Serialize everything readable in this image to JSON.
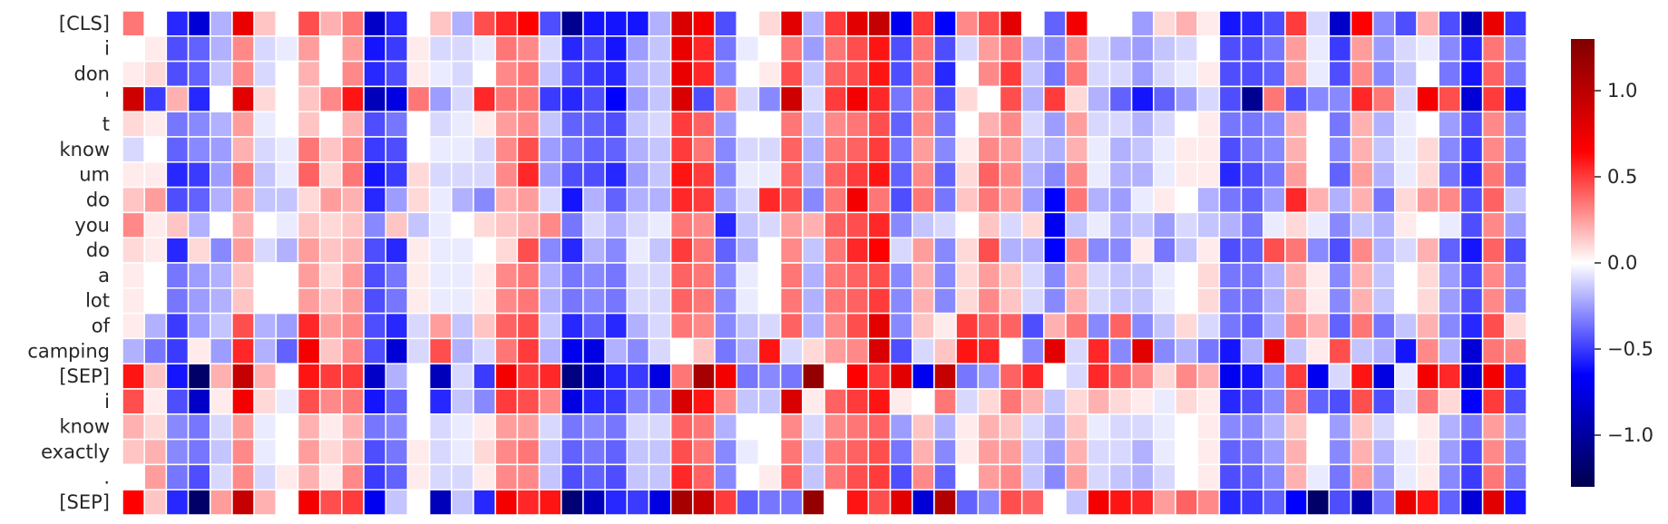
{
  "chart_data": {
    "type": "heatmap",
    "title": "",
    "xlabel": "",
    "ylabel": "",
    "rows": [
      "[CLS]",
      "i",
      "don",
      "'",
      "t",
      "know",
      "um",
      "do",
      "you",
      "do",
      "a",
      "lot",
      "of",
      "camping",
      "[SEP]",
      "i",
      "know",
      "exactly",
      ".",
      "[SEP]"
    ],
    "n_cols": 64,
    "colormap": "seismic",
    "vmin": -1.3,
    "vmax": 1.3,
    "colorbar_ticks": [
      1.0,
      0.5,
      0.0,
      -0.5,
      -1.0
    ],
    "colorbar_tick_labels": [
      "1.0",
      "0.5",
      "0.0",
      "−0.5",
      "−1.0"
    ],
    "values": [
      [
        0.35,
        0.0,
        -0.55,
        -0.8,
        -0.2,
        0.75,
        0.15,
        0.0,
        0.45,
        0.2,
        0.35,
        -0.85,
        -0.55,
        0.0,
        0.15,
        -0.2,
        0.45,
        0.55,
        0.65,
        -0.45,
        -1.05,
        -0.6,
        -0.6,
        -0.6,
        -0.2,
        0.85,
        0.7,
        -0.45,
        0.0,
        0.1,
        0.8,
        -0.2,
        0.5,
        0.8,
        0.95,
        -0.7,
        0.5,
        -0.65,
        0.3,
        0.45,
        0.8,
        0.0,
        -0.4,
        0.7,
        0.0,
        0.0,
        -0.25,
        0.1,
        0.2,
        0.05,
        -0.6,
        -0.55,
        -0.45,
        0.5,
        -0.1,
        -0.85,
        0.65,
        -0.3,
        -0.45,
        0.2,
        -0.45,
        -0.9,
        0.75,
        -0.5
      ],
      [
        0.0,
        0.05,
        -0.45,
        -0.4,
        -0.2,
        0.3,
        -0.1,
        -0.05,
        0.25,
        0.0,
        0.25,
        -0.6,
        -0.5,
        0.05,
        -0.1,
        -0.1,
        -0.05,
        0.35,
        0.3,
        -0.1,
        -0.55,
        -0.45,
        -0.6,
        -0.25,
        -0.15,
        0.75,
        0.55,
        -0.35,
        -0.05,
        0.0,
        0.35,
        -0.25,
        0.35,
        0.45,
        0.6,
        -0.45,
        0.35,
        -0.45,
        -0.1,
        0.25,
        0.35,
        -0.2,
        -0.3,
        0.3,
        -0.1,
        -0.2,
        -0.25,
        -0.15,
        -0.1,
        0.0,
        -0.45,
        -0.45,
        -0.35,
        0.25,
        -0.05,
        -0.5,
        0.25,
        -0.25,
        -0.1,
        -0.05,
        -0.3,
        -0.55,
        0.35,
        -0.3
      ],
      [
        0.05,
        0.1,
        -0.45,
        -0.4,
        -0.15,
        0.3,
        -0.1,
        0.0,
        0.2,
        0.0,
        0.3,
        -0.55,
        -0.45,
        0.05,
        -0.05,
        -0.1,
        0.0,
        0.3,
        0.35,
        -0.15,
        -0.45,
        -0.5,
        -0.55,
        -0.2,
        -0.15,
        0.75,
        0.55,
        -0.3,
        0.0,
        0.05,
        0.45,
        -0.15,
        0.4,
        0.45,
        0.6,
        -0.45,
        0.35,
        -0.55,
        0.0,
        0.3,
        0.5,
        -0.15,
        -0.35,
        0.35,
        -0.1,
        -0.1,
        -0.25,
        -0.1,
        -0.05,
        0.05,
        -0.45,
        -0.45,
        -0.4,
        0.25,
        -0.05,
        -0.45,
        0.3,
        -0.3,
        -0.15,
        0.0,
        -0.35,
        -0.6,
        0.4,
        -0.35
      ],
      [
        0.9,
        -0.5,
        0.2,
        -0.55,
        0.0,
        0.8,
        0.1,
        0.0,
        0.15,
        0.3,
        0.6,
        -0.9,
        -0.75,
        0.35,
        -0.25,
        -0.1,
        0.55,
        0.35,
        0.35,
        -0.5,
        -0.55,
        -0.45,
        -0.65,
        -0.25,
        -0.15,
        0.85,
        -0.45,
        0.35,
        -0.1,
        -0.3,
        0.9,
        -0.1,
        0.5,
        0.7,
        0.55,
        -0.35,
        0.3,
        -0.45,
        0.1,
        0.0,
        0.45,
        -0.2,
        0.5,
        0.1,
        -0.2,
        -0.4,
        -0.6,
        -0.4,
        -0.25,
        -0.1,
        -0.45,
        -1.05,
        0.35,
        -0.45,
        -0.3,
        -0.3,
        0.55,
        0.35,
        -0.1,
        0.7,
        0.45,
        -0.8,
        0.5,
        -0.6
      ],
      [
        0.1,
        0.05,
        -0.35,
        -0.3,
        -0.2,
        0.25,
        -0.05,
        0.0,
        0.15,
        0.0,
        0.2,
        -0.45,
        -0.35,
        0.0,
        -0.1,
        -0.05,
        0.05,
        0.25,
        0.3,
        -0.15,
        -0.4,
        -0.4,
        -0.45,
        -0.15,
        -0.1,
        0.5,
        0.4,
        -0.25,
        0.0,
        0.0,
        0.35,
        -0.15,
        0.3,
        0.35,
        0.45,
        -0.4,
        0.3,
        -0.35,
        0.0,
        0.2,
        0.3,
        -0.1,
        -0.25,
        0.25,
        -0.1,
        -0.1,
        -0.2,
        -0.1,
        0.0,
        0.05,
        -0.35,
        -0.35,
        -0.3,
        0.2,
        0.0,
        -0.35,
        0.2,
        -0.2,
        -0.05,
        0.0,
        -0.25,
        -0.45,
        0.3,
        -0.3
      ],
      [
        -0.1,
        0.0,
        -0.4,
        -0.3,
        -0.25,
        0.2,
        -0.1,
        -0.05,
        0.35,
        0.15,
        0.3,
        -0.5,
        -0.45,
        0.0,
        -0.05,
        -0.05,
        -0.1,
        0.3,
        0.45,
        -0.25,
        -0.35,
        -0.4,
        -0.4,
        -0.2,
        -0.15,
        0.5,
        0.35,
        -0.3,
        -0.1,
        -0.1,
        0.4,
        -0.2,
        0.35,
        0.4,
        0.5,
        -0.35,
        0.25,
        -0.3,
        0.05,
        0.3,
        0.25,
        -0.15,
        -0.2,
        0.2,
        -0.05,
        -0.2,
        -0.15,
        -0.05,
        0.05,
        0.05,
        -0.45,
        -0.35,
        -0.3,
        0.2,
        0.0,
        -0.3,
        0.2,
        -0.15,
        -0.05,
        0.1,
        -0.3,
        -0.5,
        0.3,
        -0.3
      ],
      [
        0.05,
        0.05,
        -0.55,
        -0.5,
        -0.25,
        0.35,
        -0.15,
        -0.05,
        0.4,
        0.1,
        0.35,
        -0.6,
        -0.5,
        0.1,
        -0.1,
        -0.1,
        -0.1,
        0.3,
        0.55,
        -0.25,
        -0.45,
        -0.45,
        -0.55,
        -0.25,
        -0.15,
        0.6,
        0.5,
        -0.3,
        -0.05,
        -0.05,
        0.4,
        -0.2,
        0.4,
        0.5,
        0.6,
        -0.4,
        0.3,
        -0.4,
        0.1,
        0.4,
        0.3,
        -0.2,
        -0.3,
        0.3,
        -0.05,
        -0.2,
        -0.2,
        -0.05,
        0.05,
        0.05,
        -0.55,
        -0.45,
        -0.35,
        0.25,
        0.0,
        -0.4,
        0.25,
        -0.2,
        -0.05,
        0.1,
        -0.35,
        -0.55,
        0.35,
        -0.35
      ],
      [
        0.15,
        0.25,
        -0.45,
        -0.4,
        -0.2,
        0.25,
        -0.15,
        -0.15,
        0.1,
        0.25,
        0.2,
        -0.55,
        -0.25,
        0.1,
        -0.05,
        -0.2,
        -0.3,
        0.2,
        0.25,
        -0.1,
        -0.6,
        -0.2,
        -0.4,
        -0.2,
        -0.2,
        0.55,
        0.5,
        -0.25,
        -0.1,
        0.55,
        0.45,
        -0.3,
        0.35,
        0.7,
        0.35,
        -0.45,
        0.35,
        -0.35,
        0.15,
        0.35,
        0.25,
        -0.25,
        -0.65,
        0.35,
        -0.2,
        -0.25,
        -0.05,
        0.05,
        0.0,
        -0.2,
        -0.35,
        -0.4,
        -0.25,
        0.55,
        0.2,
        -0.2,
        0.2,
        -0.35,
        0.1,
        0.25,
        0.3,
        -0.45,
        0.4,
        -0.15
      ],
      [
        0.3,
        0.05,
        0.15,
        -0.2,
        0.0,
        0.2,
        0.0,
        -0.05,
        0.15,
        0.1,
        0.15,
        -0.3,
        0.15,
        -0.15,
        -0.05,
        0.0,
        0.1,
        0.15,
        0.2,
        0.3,
        -0.35,
        -0.1,
        -0.2,
        -0.1,
        -0.05,
        0.35,
        0.3,
        -0.55,
        -0.15,
        -0.1,
        0.25,
        0.2,
        0.4,
        0.45,
        0.55,
        -0.3,
        -0.15,
        -0.1,
        0.0,
        0.15,
        -0.1,
        0.1,
        -0.7,
        -0.15,
        -0.05,
        -0.2,
        -0.15,
        -0.25,
        -0.1,
        -0.15,
        -0.2,
        -0.35,
        -0.05,
        0.1,
        -0.05,
        -0.3,
        -0.15,
        -0.2,
        0.05,
        0.0,
        -0.05,
        -0.45,
        0.3,
        -0.25
      ],
      [
        0.1,
        0.05,
        -0.55,
        0.1,
        -0.3,
        0.25,
        -0.1,
        -0.2,
        0.25,
        0.15,
        0.2,
        -0.45,
        -0.55,
        0.05,
        -0.05,
        -0.05,
        0.0,
        0.1,
        0.45,
        -0.3,
        -0.55,
        -0.2,
        -0.3,
        -0.05,
        -0.15,
        0.5,
        0.35,
        -0.4,
        -0.2,
        0.0,
        0.3,
        -0.15,
        0.35,
        0.55,
        0.65,
        -0.1,
        0.25,
        -0.3,
        0.1,
        0.45,
        -0.2,
        -0.2,
        -0.65,
        0.3,
        -0.3,
        -0.3,
        0.05,
        -0.35,
        -0.15,
        0.05,
        -0.45,
        -0.4,
        0.45,
        0.35,
        -0.3,
        -0.45,
        0.3,
        -0.2,
        -0.1,
        0.2,
        -0.4,
        -0.6,
        0.4,
        -0.45
      ],
      [
        0.05,
        0.0,
        -0.35,
        -0.25,
        -0.2,
        0.15,
        0.0,
        0.0,
        0.25,
        0.1,
        0.25,
        -0.45,
        -0.35,
        0.05,
        -0.05,
        -0.05,
        0.05,
        0.3,
        0.35,
        -0.2,
        -0.35,
        -0.3,
        -0.35,
        -0.1,
        -0.1,
        0.4,
        0.35,
        -0.3,
        -0.05,
        0.0,
        0.35,
        -0.2,
        0.35,
        0.4,
        0.45,
        -0.3,
        0.2,
        -0.3,
        0.1,
        0.25,
        0.15,
        -0.1,
        -0.3,
        0.2,
        -0.1,
        -0.15,
        -0.15,
        -0.05,
        0.0,
        0.1,
        -0.35,
        -0.35,
        -0.2,
        0.2,
        0.05,
        -0.3,
        0.2,
        -0.15,
        0.0,
        0.1,
        -0.25,
        -0.45,
        0.3,
        -0.3
      ],
      [
        0.05,
        0.0,
        -0.35,
        -0.25,
        -0.2,
        0.15,
        0.0,
        0.0,
        0.25,
        0.15,
        0.25,
        -0.45,
        -0.35,
        0.05,
        -0.05,
        -0.05,
        0.05,
        0.3,
        0.35,
        -0.2,
        -0.35,
        -0.3,
        -0.35,
        -0.1,
        -0.1,
        0.4,
        0.35,
        -0.3,
        -0.05,
        0.0,
        0.35,
        -0.2,
        0.35,
        0.4,
        0.5,
        -0.3,
        0.2,
        -0.3,
        0.1,
        0.3,
        0.15,
        -0.1,
        -0.3,
        0.2,
        -0.1,
        -0.15,
        -0.15,
        -0.05,
        0.0,
        0.1,
        -0.35,
        -0.35,
        -0.2,
        0.2,
        0.05,
        -0.3,
        0.2,
        -0.15,
        0.0,
        0.1,
        -0.25,
        -0.45,
        0.3,
        -0.3
      ],
      [
        0.05,
        -0.2,
        -0.5,
        -0.25,
        -0.15,
        0.45,
        -0.2,
        -0.25,
        0.55,
        0.25,
        0.3,
        -0.45,
        -0.55,
        -0.1,
        0.25,
        -0.15,
        0.15,
        0.4,
        0.45,
        -0.15,
        -0.55,
        -0.4,
        -0.55,
        -0.2,
        -0.1,
        0.35,
        0.3,
        -0.3,
        -0.15,
        -0.1,
        0.4,
        -0.2,
        0.3,
        0.45,
        0.8,
        -0.3,
        0.15,
        0.05,
        0.5,
        0.4,
        0.4,
        -0.45,
        0.2,
        0.35,
        -0.3,
        0.4,
        -0.3,
        -0.15,
        0.1,
        -0.1,
        -0.35,
        -0.4,
        -0.2,
        0.3,
        0.2,
        -0.4,
        0.35,
        -0.35,
        -0.15,
        0.2,
        -0.3,
        -0.55,
        0.45,
        0.1
      ],
      [
        -0.2,
        -0.35,
        -0.5,
        0.05,
        -0.25,
        0.55,
        -0.2,
        -0.4,
        0.7,
        0.15,
        0.3,
        -0.45,
        -0.8,
        -0.1,
        0.45,
        -0.2,
        -0.1,
        0.35,
        0.5,
        -0.2,
        -0.7,
        -0.75,
        -0.2,
        -0.3,
        -0.1,
        0.0,
        0.15,
        -0.35,
        -0.2,
        0.6,
        -0.1,
        0.1,
        0.25,
        0.3,
        0.85,
        -0.45,
        -0.1,
        0.15,
        0.6,
        0.55,
        0.0,
        -0.3,
        0.8,
        -0.1,
        0.55,
        -0.3,
        0.8,
        -0.3,
        -0.2,
        -0.35,
        -0.6,
        -0.2,
        0.75,
        -0.15,
        0.05,
        0.45,
        -0.15,
        -0.2,
        -0.6,
        0.3,
        -0.2,
        -0.8,
        0.35,
        0.3
      ],
      [
        0.6,
        0.15,
        -0.6,
        -1.2,
        0.2,
        0.95,
        0.2,
        0.0,
        0.6,
        0.5,
        0.5,
        -0.85,
        -0.2,
        0.0,
        -0.9,
        -0.1,
        -0.5,
        0.7,
        0.5,
        0.55,
        -1.1,
        -0.85,
        -0.55,
        -0.5,
        -0.75,
        0.35,
        1.1,
        0.7,
        -0.35,
        -0.3,
        -0.35,
        1.2,
        0.0,
        0.65,
        0.5,
        0.8,
        -0.7,
        0.95,
        -0.35,
        -0.25,
        0.4,
        0.55,
        0.0,
        -0.1,
        0.55,
        0.4,
        0.3,
        0.1,
        0.3,
        0.2,
        -0.7,
        -0.6,
        -0.3,
        0.5,
        -0.7,
        -0.1,
        0.6,
        -0.75,
        -0.05,
        0.7,
        0.55,
        -0.8,
        0.7,
        -0.55
      ],
      [
        0.45,
        0.05,
        -0.45,
        -0.85,
        0.05,
        0.7,
        0.1,
        -0.05,
        0.45,
        0.3,
        0.35,
        -0.6,
        -0.4,
        0.0,
        -0.55,
        -0.15,
        -0.3,
        0.5,
        0.45,
        0.3,
        -0.75,
        -0.55,
        -0.5,
        -0.3,
        -0.3,
        0.85,
        0.6,
        0.3,
        -0.15,
        -0.15,
        0.85,
        0.05,
        0.4,
        0.5,
        0.6,
        0.05,
        0.0,
        0.35,
        -0.1,
        0.1,
        0.35,
        0.2,
        -0.15,
        0.1,
        0.2,
        0.1,
        0.05,
        -0.05,
        0.1,
        0.05,
        -0.55,
        -0.45,
        -0.3,
        0.35,
        -0.4,
        -0.45,
        0.45,
        -0.45,
        -0.1,
        0.35,
        0.1,
        -0.65,
        0.5,
        -0.45
      ],
      [
        0.2,
        0.1,
        -0.3,
        -0.35,
        -0.1,
        0.25,
        -0.05,
        0.0,
        0.2,
        0.05,
        0.2,
        -0.35,
        -0.3,
        0.0,
        -0.1,
        -0.05,
        0.05,
        0.25,
        0.25,
        -0.1,
        -0.35,
        -0.3,
        -0.35,
        -0.1,
        -0.1,
        0.4,
        0.35,
        -0.2,
        0.0,
        0.0,
        0.3,
        -0.1,
        0.3,
        0.35,
        0.4,
        -0.25,
        0.15,
        -0.2,
        0.05,
        0.2,
        0.15,
        -0.1,
        -0.2,
        0.15,
        -0.05,
        -0.1,
        -0.1,
        -0.05,
        0.0,
        0.05,
        -0.3,
        -0.3,
        -0.2,
        0.15,
        0.0,
        -0.25,
        0.15,
        -0.1,
        0.0,
        0.05,
        -0.2,
        -0.35,
        0.25,
        -0.25
      ],
      [
        0.15,
        0.2,
        -0.3,
        -0.35,
        -0.15,
        0.3,
        -0.05,
        0.0,
        0.25,
        0.1,
        0.2,
        -0.45,
        -0.35,
        0.05,
        -0.1,
        -0.05,
        0.1,
        0.3,
        0.35,
        -0.15,
        -0.4,
        -0.35,
        -0.4,
        -0.15,
        -0.15,
        0.45,
        0.35,
        -0.3,
        -0.05,
        0.0,
        0.35,
        -0.15,
        0.35,
        0.4,
        0.45,
        -0.35,
        0.2,
        -0.3,
        0.05,
        0.25,
        0.25,
        -0.15,
        -0.25,
        0.2,
        -0.1,
        -0.1,
        -0.2,
        -0.05,
        0.0,
        0.05,
        -0.4,
        -0.35,
        -0.25,
        0.2,
        0.0,
        -0.3,
        0.2,
        -0.2,
        -0.05,
        0.05,
        -0.25,
        -0.45,
        0.3,
        -0.3
      ],
      [
        0.0,
        0.25,
        -0.35,
        -0.45,
        -0.1,
        0.3,
        -0.1,
        0.05,
        0.2,
        0.05,
        0.3,
        -0.5,
        -0.4,
        0.05,
        -0.1,
        -0.1,
        0.05,
        0.3,
        0.3,
        -0.15,
        -0.45,
        -0.4,
        -0.45,
        -0.15,
        -0.15,
        0.55,
        0.4,
        -0.3,
        0.0,
        0.05,
        0.4,
        -0.15,
        0.35,
        0.45,
        0.5,
        -0.45,
        0.3,
        -0.4,
        0.0,
        0.25,
        0.3,
        -0.15,
        -0.3,
        0.25,
        -0.1,
        -0.15,
        -0.2,
        -0.1,
        0.0,
        0.05,
        -0.45,
        -0.4,
        -0.3,
        0.2,
        -0.05,
        -0.35,
        0.25,
        -0.25,
        -0.05,
        0.05,
        -0.3,
        -0.5,
        0.35,
        -0.35
      ],
      [
        0.65,
        0.15,
        -0.55,
        -1.2,
        0.25,
        0.95,
        0.2,
        0.0,
        0.7,
        0.45,
        0.5,
        -0.7,
        -0.15,
        0.0,
        -0.9,
        -0.15,
        -0.55,
        0.7,
        0.55,
        0.6,
        -1.15,
        -0.9,
        -0.55,
        -0.5,
        -0.75,
        1.1,
        0.95,
        0.5,
        -0.4,
        -0.35,
        -0.35,
        1.2,
        0.0,
        0.6,
        0.45,
        0.8,
        -0.8,
        1.05,
        -0.4,
        -0.3,
        0.45,
        0.4,
        0.0,
        -0.15,
        0.7,
        0.6,
        0.55,
        0.25,
        0.4,
        0.3,
        -0.55,
        -0.5,
        -0.4,
        -0.65,
        -1.2,
        -0.45,
        -0.95,
        -0.35,
        0.75,
        0.6,
        -0.4,
        -0.8,
        0.8,
        -0.6
      ]
    ]
  }
}
